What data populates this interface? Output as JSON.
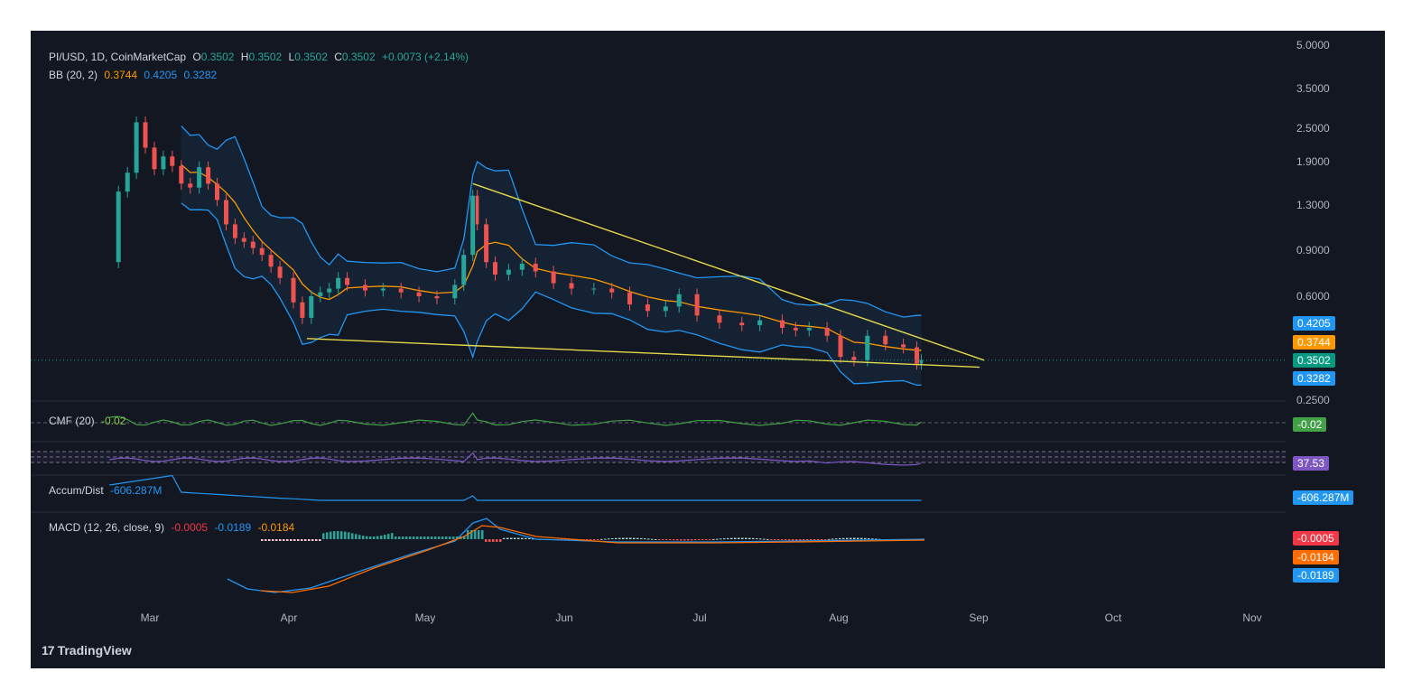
{
  "header": {
    "symbol_line": "PI/USD, 1D, CoinMarketCap",
    "o_label": "O",
    "o_value": "0.3502",
    "h_label": "H",
    "h_value": "0.3502",
    "l_label": "L",
    "l_value": "0.3502",
    "c_label": "C",
    "c_value": "0.3502",
    "change": "+0.0073 (+2.14%)",
    "bb_label": "BB (20, 2)",
    "bb_basis": "0.3744",
    "bb_upper": "0.4205",
    "bb_lower": "0.3282"
  },
  "indicators": {
    "cmf_label": "CMF (20)",
    "cmf_value": "-0.02",
    "cmf_badge": "-0.02",
    "rsi_badge": "37.53",
    "ad_label": "Accum/Dist",
    "ad_value": "-606.287M",
    "ad_badge": "-606.287M",
    "macd_label": "MACD (12, 26, close, 9)",
    "macd_hist": "-0.0005",
    "macd_line": "-0.0189",
    "macd_signal": "-0.0184",
    "macd_badges": [
      "-0.0005",
      "-0.0184",
      "-0.0189"
    ]
  },
  "price_axis": [
    "5.0000",
    "3.5000",
    "2.5000",
    "1.9000",
    "1.3000",
    "0.9000",
    "0.6000",
    "0.2500"
  ],
  "price_tags": [
    {
      "value": "0.4205",
      "color": "#2196f3"
    },
    {
      "value": "0.3744",
      "color": "#ff9800"
    },
    {
      "value": "0.3502",
      "color": "#089981"
    },
    {
      "value": "0.3282",
      "color": "#2196f3"
    }
  ],
  "months": [
    "Mar",
    "Apr",
    "May",
    "Jun",
    "Jul",
    "Aug",
    "Sep",
    "Oct",
    "Nov"
  ],
  "branding": "TradingView",
  "colors": {
    "up": "#26a69a",
    "down": "#ef5350",
    "bb_basis": "#ff9800",
    "bb_band": "#2196f3",
    "trendline": "#e6d84a",
    "cmf": "#43a047",
    "rsi": "#7e57c2",
    "ad": "#2196f3"
  },
  "chart_data": {
    "type": "candlestick",
    "title": "PI/USD, 1D, CoinMarketCap",
    "y_scale": "log",
    "ylim": [
      0.25,
      5.0
    ],
    "x_ticks": [
      "Mar",
      "Apr",
      "May",
      "Jun",
      "Jul",
      "Aug",
      "Sep",
      "Oct",
      "Nov"
    ],
    "close_series": {
      "name": "PI/USD close",
      "points": [
        [
          "2025-02-20",
          0.8
        ],
        [
          "2025-02-22",
          1.45
        ],
        [
          "2025-02-24",
          1.7
        ],
        [
          "2025-02-26",
          2.6
        ],
        [
          "2025-02-28",
          2.1
        ],
        [
          "2025-03-02",
          1.75
        ],
        [
          "2025-03-04",
          1.95
        ],
        [
          "2025-03-06",
          1.8
        ],
        [
          "2025-03-08",
          1.55
        ],
        [
          "2025-03-10",
          1.5
        ],
        [
          "2025-03-12",
          1.78
        ],
        [
          "2025-03-14",
          1.55
        ],
        [
          "2025-03-16",
          1.35
        ],
        [
          "2025-03-18",
          1.1
        ],
        [
          "2025-03-20",
          0.98
        ],
        [
          "2025-03-22",
          0.95
        ],
        [
          "2025-03-24",
          0.9
        ],
        [
          "2025-03-26",
          0.85
        ],
        [
          "2025-03-28",
          0.77
        ],
        [
          "2025-03-30",
          0.7
        ],
        [
          "2025-04-02",
          0.57
        ],
        [
          "2025-04-04",
          0.5
        ],
        [
          "2025-04-06",
          0.6
        ],
        [
          "2025-04-08",
          0.62
        ],
        [
          "2025-04-10",
          0.64
        ],
        [
          "2025-04-12",
          0.7
        ],
        [
          "2025-04-14",
          0.66
        ],
        [
          "2025-04-18",
          0.63
        ],
        [
          "2025-04-22",
          0.64
        ],
        [
          "2025-04-26",
          0.62
        ],
        [
          "2025-04-30",
          0.6
        ],
        [
          "2025-05-04",
          0.59
        ],
        [
          "2025-05-08",
          0.66
        ],
        [
          "2025-05-10",
          0.85
        ],
        [
          "2025-05-12",
          1.4
        ],
        [
          "2025-05-13",
          1.1
        ],
        [
          "2025-05-15",
          0.8
        ],
        [
          "2025-05-17",
          0.72
        ],
        [
          "2025-05-20",
          0.75
        ],
        [
          "2025-05-23",
          0.79
        ],
        [
          "2025-05-26",
          0.74
        ],
        [
          "2025-05-30",
          0.67
        ],
        [
          "2025-06-03",
          0.64
        ],
        [
          "2025-06-08",
          0.64
        ],
        [
          "2025-06-12",
          0.62
        ],
        [
          "2025-06-16",
          0.56
        ],
        [
          "2025-06-20",
          0.53
        ],
        [
          "2025-06-24",
          0.55
        ],
        [
          "2025-06-27",
          0.61
        ],
        [
          "2025-07-01",
          0.51
        ],
        [
          "2025-07-06",
          0.48
        ],
        [
          "2025-07-11",
          0.47
        ],
        [
          "2025-07-15",
          0.49
        ],
        [
          "2025-07-20",
          0.46
        ],
        [
          "2025-07-23",
          0.45
        ],
        [
          "2025-07-26",
          0.46
        ],
        [
          "2025-07-30",
          0.43
        ],
        [
          "2025-08-02",
          0.36
        ],
        [
          "2025-08-05",
          0.35
        ],
        [
          "2025-08-08",
          0.43
        ],
        [
          "2025-08-12",
          0.4
        ],
        [
          "2025-08-16",
          0.39
        ],
        [
          "2025-08-19",
          0.34
        ],
        [
          "2025-08-20",
          0.3502
        ]
      ]
    },
    "bollinger": {
      "period": 20,
      "stddev": 2,
      "basis": 0.3744,
      "upper": 0.4205,
      "lower": 0.3282
    },
    "trendlines": [
      {
        "name": "upper",
        "from": [
          "2025-05-12",
          1.55
        ],
        "to": [
          "2025-09-03",
          0.35
        ]
      },
      {
        "name": "lower",
        "from": [
          "2025-04-05",
          0.42
        ],
        "to": [
          "2025-09-02",
          0.33
        ]
      }
    ],
    "current_price": 0.3502
  }
}
